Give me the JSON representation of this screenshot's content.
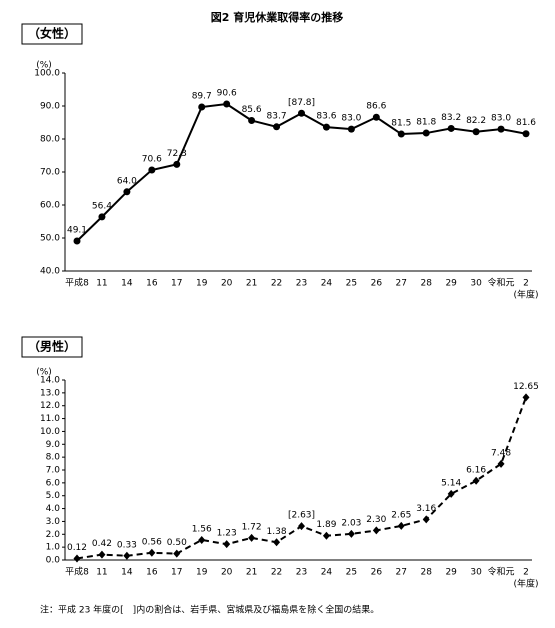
{
  "title": "図2 育児休業取得率の推移",
  "chart_data": [
    {
      "type": "line",
      "title": "（女性）",
      "y_unit": "(%)",
      "x_unit": "(年度)",
      "categories": [
        "平成8",
        "11",
        "14",
        "16",
        "17",
        "19",
        "20",
        "21",
        "22",
        "23",
        "24",
        "25",
        "26",
        "27",
        "28",
        "29",
        "30",
        "令和元",
        "2"
      ],
      "series": [
        {
          "color": "#000000",
          "marker": "circle",
          "line_style": "solid",
          "values": [
            49.1,
            56.4,
            64.0,
            70.6,
            72.3,
            89.7,
            90.6,
            85.6,
            83.7,
            87.8,
            83.6,
            83.0,
            86.6,
            81.5,
            81.8,
            83.2,
            82.2,
            83.0,
            81.6
          ],
          "value_labels": [
            "49.1",
            "56.4",
            "64.0",
            "70.6",
            "72.3",
            "89.7",
            "90.6",
            "85.6",
            "83.7",
            "[87.8]",
            "83.6",
            "83.0",
            "86.6",
            "81.5",
            "81.8",
            "83.2",
            "82.2",
            "83.0",
            "81.6"
          ]
        }
      ],
      "ylim": [
        40,
        100
      ],
      "yticks": [
        {
          "value": 40,
          "label": "40.0"
        },
        {
          "value": 50,
          "label": "50.0"
        },
        {
          "value": 60,
          "label": "60.0"
        },
        {
          "value": 70,
          "label": "70.0"
        },
        {
          "value": 80,
          "label": "80.0"
        },
        {
          "value": 90,
          "label": "90.0"
        },
        {
          "value": 100,
          "label": "100.0"
        }
      ],
      "grid": false
    },
    {
      "type": "line",
      "title": "（男性）",
      "y_unit": "(%)",
      "x_unit": "(年度)",
      "categories": [
        "平成8",
        "11",
        "14",
        "16",
        "17",
        "19",
        "20",
        "21",
        "22",
        "23",
        "24",
        "25",
        "26",
        "27",
        "28",
        "29",
        "30",
        "令和元",
        "2"
      ],
      "series": [
        {
          "color": "#000000",
          "marker": "diamond",
          "line_style": "dashed",
          "values": [
            0.12,
            0.42,
            0.33,
            0.56,
            0.5,
            1.56,
            1.23,
            1.72,
            1.38,
            2.63,
            1.89,
            2.03,
            2.3,
            2.65,
            3.16,
            5.14,
            6.16,
            7.48,
            12.65
          ],
          "value_labels": [
            "0.12",
            "0.42",
            "0.33",
            "0.56",
            "0.50",
            "1.56",
            "1.23",
            "1.72",
            "1.38",
            "[2.63]",
            "1.89",
            "2.03",
            "2.30",
            "2.65",
            "3.16",
            "5.14",
            "6.16",
            "7.48",
            "12.65"
          ]
        }
      ],
      "ylim": [
        0,
        14
      ],
      "yticks": [
        {
          "value": 0,
          "label": "0.0"
        },
        {
          "value": 1,
          "label": "1.0"
        },
        {
          "value": 2,
          "label": "2.0"
        },
        {
          "value": 3,
          "label": "3.0"
        },
        {
          "value": 4,
          "label": "4.0"
        },
        {
          "value": 5,
          "label": "5.0"
        },
        {
          "value": 6,
          "label": "6.0"
        },
        {
          "value": 7,
          "label": "7.0"
        },
        {
          "value": 8,
          "label": "8.0"
        },
        {
          "value": 9,
          "label": "9.0"
        },
        {
          "value": 10,
          "label": "10.0"
        },
        {
          "value": 11,
          "label": "11.0"
        },
        {
          "value": 12,
          "label": "12.0"
        },
        {
          "value": 13,
          "label": "13.0"
        },
        {
          "value": 14,
          "label": "14.0"
        }
      ],
      "grid": false
    }
  ],
  "note": "注：平成 23 年度の[　]内の割合は、岩手県、宮城県及び福島県を除く全国の結果。"
}
